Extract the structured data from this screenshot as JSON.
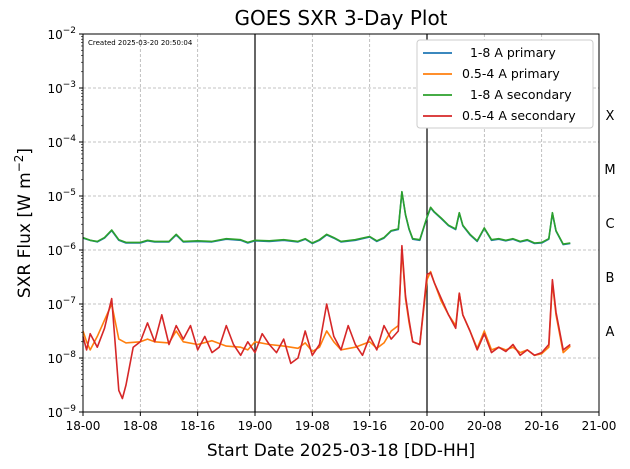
{
  "chart_data": {
    "type": "line",
    "title": "GOES SXR 3-Day Plot",
    "created": "Created 2025-03-20 20:50:04",
    "xlabel": "Start Date 2025-03-18 [DD-HH]",
    "ylabel_main": "SXR Flux [W m",
    "ylabel_exp": "−2",
    "ylabel_close": "]",
    "y_scale": "log",
    "xlim_hours": [
      0,
      72
    ],
    "ylim_exp": [
      -9,
      -2
    ],
    "x_ticks": [
      "18-00",
      "18-08",
      "18-16",
      "19-00",
      "19-08",
      "19-16",
      "20-00",
      "20-08",
      "20-16",
      "21-00"
    ],
    "y_ticks": [
      {
        "exp": -9,
        "label": "10",
        "sup": "−9"
      },
      {
        "exp": -8,
        "label": "10",
        "sup": "−8"
      },
      {
        "exp": -7,
        "label": "10",
        "sup": "−7"
      },
      {
        "exp": -6,
        "label": "10",
        "sup": "−6"
      },
      {
        "exp": -5,
        "label": "10",
        "sup": "−5"
      },
      {
        "exp": -4,
        "label": "10",
        "sup": "−4"
      },
      {
        "exp": -3,
        "label": "10",
        "sup": "−3"
      },
      {
        "exp": -2,
        "label": "10",
        "sup": "−2"
      }
    ],
    "flare_classes": [
      {
        "label": "A",
        "exp": -7.5
      },
      {
        "label": "B",
        "exp": -6.5
      },
      {
        "label": "C",
        "exp": -5.5
      },
      {
        "label": "M",
        "exp": -4.5
      },
      {
        "label": "X",
        "exp": -3.5
      }
    ],
    "day_lines_hours": [
      24,
      48
    ],
    "grid": true,
    "legend_position": "top-right",
    "series": [
      {
        "name": "  1-8 A primary",
        "color": "#1f77b4",
        "points": [
          [
            0,
            -5.78
          ],
          [
            1,
            -5.82
          ],
          [
            2,
            -5.85
          ],
          [
            3,
            -5.78
          ],
          [
            4,
            -5.64
          ],
          [
            5,
            -5.82
          ],
          [
            6,
            -5.87
          ],
          [
            8,
            -5.87
          ],
          [
            9,
            -5.83
          ],
          [
            10,
            -5.85
          ],
          [
            12,
            -5.85
          ],
          [
            13,
            -5.72
          ],
          [
            14,
            -5.85
          ],
          [
            16,
            -5.84
          ],
          [
            18,
            -5.85
          ],
          [
            20,
            -5.8
          ],
          [
            22,
            -5.82
          ],
          [
            23,
            -5.87
          ],
          [
            24,
            -5.83
          ],
          [
            26,
            -5.84
          ],
          [
            28,
            -5.82
          ],
          [
            30,
            -5.85
          ],
          [
            31,
            -5.8
          ],
          [
            32,
            -5.88
          ],
          [
            33,
            -5.82
          ],
          [
            34,
            -5.72
          ],
          [
            35,
            -5.78
          ],
          [
            36,
            -5.85
          ],
          [
            38,
            -5.82
          ],
          [
            40,
            -5.76
          ],
          [
            41,
            -5.84
          ],
          [
            42,
            -5.78
          ],
          [
            43,
            -5.65
          ],
          [
            44,
            -5.62
          ],
          [
            44.5,
            -4.93
          ],
          [
            45,
            -5.35
          ],
          [
            45.5,
            -5.62
          ],
          [
            46,
            -5.8
          ],
          [
            47,
            -5.82
          ],
          [
            48,
            -5.4
          ],
          [
            48.5,
            -5.22
          ],
          [
            49,
            -5.3
          ],
          [
            50,
            -5.42
          ],
          [
            51,
            -5.55
          ],
          [
            52,
            -5.62
          ],
          [
            52.5,
            -5.32
          ],
          [
            53,
            -5.55
          ],
          [
            54,
            -5.72
          ],
          [
            55,
            -5.84
          ],
          [
            56,
            -5.6
          ],
          [
            57,
            -5.82
          ],
          [
            58,
            -5.8
          ],
          [
            59,
            -5.83
          ],
          [
            60,
            -5.8
          ],
          [
            61,
            -5.85
          ],
          [
            62,
            -5.82
          ],
          [
            63,
            -5.88
          ],
          [
            64,
            -5.87
          ],
          [
            65,
            -5.8
          ],
          [
            65.5,
            -5.32
          ],
          [
            66,
            -5.65
          ],
          [
            67,
            -5.9
          ],
          [
            68,
            -5.88
          ]
        ]
      },
      {
        "name": "0.5-4 A primary",
        "color": "#ff7f0e",
        "points": [
          [
            0,
            -7.5
          ],
          [
            0.5,
            -7.7
          ],
          [
            1,
            -7.85
          ],
          [
            2,
            -7.6
          ],
          [
            3,
            -7.3
          ],
          [
            4,
            -7.0
          ],
          [
            5,
            -7.65
          ],
          [
            6,
            -7.72
          ],
          [
            8,
            -7.7
          ],
          [
            9,
            -7.65
          ],
          [
            10,
            -7.7
          ],
          [
            12,
            -7.72
          ],
          [
            13,
            -7.5
          ],
          [
            14,
            -7.7
          ],
          [
            16,
            -7.75
          ],
          [
            18,
            -7.68
          ],
          [
            20,
            -7.78
          ],
          [
            22,
            -7.8
          ],
          [
            23,
            -7.85
          ],
          [
            24,
            -7.7
          ],
          [
            26,
            -7.75
          ],
          [
            28,
            -7.78
          ],
          [
            30,
            -7.82
          ],
          [
            31,
            -7.72
          ],
          [
            32,
            -7.88
          ],
          [
            33,
            -7.8
          ],
          [
            34,
            -7.5
          ],
          [
            35,
            -7.7
          ],
          [
            36,
            -7.85
          ],
          [
            38,
            -7.8
          ],
          [
            40,
            -7.7
          ],
          [
            41,
            -7.82
          ],
          [
            42,
            -7.72
          ],
          [
            43,
            -7.5
          ],
          [
            44,
            -7.4
          ],
          [
            44.5,
            -6.0
          ],
          [
            45,
            -6.9
          ],
          [
            45.5,
            -7.35
          ],
          [
            46,
            -7.7
          ],
          [
            47,
            -7.75
          ],
          [
            48,
            -6.55
          ],
          [
            48.5,
            -6.4
          ],
          [
            49,
            -6.6
          ],
          [
            50,
            -6.95
          ],
          [
            51,
            -7.2
          ],
          [
            52,
            -7.4
          ],
          [
            52.5,
            -6.8
          ],
          [
            53,
            -7.2
          ],
          [
            54,
            -7.5
          ],
          [
            55,
            -7.82
          ],
          [
            56,
            -7.5
          ],
          [
            57,
            -7.85
          ],
          [
            58,
            -7.8
          ],
          [
            59,
            -7.85
          ],
          [
            60,
            -7.8
          ],
          [
            61,
            -7.9
          ],
          [
            62,
            -7.85
          ],
          [
            63,
            -7.95
          ],
          [
            64,
            -7.92
          ],
          [
            65,
            -7.8
          ],
          [
            65.5,
            -6.6
          ],
          [
            66,
            -7.2
          ],
          [
            67,
            -7.9
          ],
          [
            68,
            -7.78
          ]
        ]
      },
      {
        "name": "  1-8 A secondary",
        "color": "#2ca02c",
        "points": [
          [
            0,
            -5.77
          ],
          [
            1,
            -5.82
          ],
          [
            2,
            -5.84
          ],
          [
            3,
            -5.77
          ],
          [
            4,
            -5.63
          ],
          [
            5,
            -5.81
          ],
          [
            6,
            -5.86
          ],
          [
            8,
            -5.86
          ],
          [
            9,
            -5.82
          ],
          [
            10,
            -5.84
          ],
          [
            12,
            -5.84
          ],
          [
            13,
            -5.71
          ],
          [
            14,
            -5.84
          ],
          [
            16,
            -5.83
          ],
          [
            18,
            -5.84
          ],
          [
            20,
            -5.79
          ],
          [
            22,
            -5.81
          ],
          [
            23,
            -5.86
          ],
          [
            24,
            -5.82
          ],
          [
            26,
            -5.83
          ],
          [
            28,
            -5.81
          ],
          [
            30,
            -5.84
          ],
          [
            31,
            -5.79
          ],
          [
            32,
            -5.87
          ],
          [
            33,
            -5.81
          ],
          [
            34,
            -5.71
          ],
          [
            35,
            -5.77
          ],
          [
            36,
            -5.84
          ],
          [
            38,
            -5.81
          ],
          [
            40,
            -5.75
          ],
          [
            41,
            -5.83
          ],
          [
            42,
            -5.77
          ],
          [
            43,
            -5.64
          ],
          [
            44,
            -5.61
          ],
          [
            44.5,
            -4.92
          ],
          [
            45,
            -5.34
          ],
          [
            45.5,
            -5.61
          ],
          [
            46,
            -5.79
          ],
          [
            47,
            -5.81
          ],
          [
            48,
            -5.39
          ],
          [
            48.5,
            -5.21
          ],
          [
            49,
            -5.29
          ],
          [
            50,
            -5.41
          ],
          [
            51,
            -5.54
          ],
          [
            52,
            -5.61
          ],
          [
            52.5,
            -5.31
          ],
          [
            53,
            -5.54
          ],
          [
            54,
            -5.71
          ],
          [
            55,
            -5.83
          ],
          [
            56,
            -5.59
          ],
          [
            57,
            -5.81
          ],
          [
            58,
            -5.79
          ],
          [
            59,
            -5.82
          ],
          [
            60,
            -5.79
          ],
          [
            61,
            -5.84
          ],
          [
            62,
            -5.81
          ],
          [
            63,
            -5.87
          ],
          [
            64,
            -5.86
          ],
          [
            65,
            -5.79
          ],
          [
            65.5,
            -5.31
          ],
          [
            66,
            -5.64
          ],
          [
            67,
            -5.89
          ],
          [
            68,
            -5.87
          ]
        ]
      },
      {
        "name": "0.5-4 A secondary",
        "color": "#d62728",
        "points": [
          [
            0,
            -7.6
          ],
          [
            0.5,
            -7.85
          ],
          [
            1,
            -7.55
          ],
          [
            2,
            -7.8
          ],
          [
            3,
            -7.45
          ],
          [
            4,
            -6.9
          ],
          [
            5,
            -8.6
          ],
          [
            5.5,
            -8.75
          ],
          [
            6,
            -8.5
          ],
          [
            7,
            -7.8
          ],
          [
            8,
            -7.7
          ],
          [
            9,
            -7.35
          ],
          [
            10,
            -7.7
          ],
          [
            11,
            -7.2
          ],
          [
            12,
            -7.75
          ],
          [
            13,
            -7.4
          ],
          [
            14,
            -7.65
          ],
          [
            15,
            -7.4
          ],
          [
            16,
            -7.85
          ],
          [
            17,
            -7.6
          ],
          [
            18,
            -7.9
          ],
          [
            19,
            -7.8
          ],
          [
            20,
            -7.4
          ],
          [
            21,
            -7.75
          ],
          [
            22,
            -7.95
          ],
          [
            23,
            -7.7
          ],
          [
            24,
            -7.9
          ],
          [
            25,
            -7.55
          ],
          [
            26,
            -7.75
          ],
          [
            27,
            -7.9
          ],
          [
            28,
            -7.65
          ],
          [
            29,
            -8.1
          ],
          [
            30,
            -8.0
          ],
          [
            31,
            -7.5
          ],
          [
            32,
            -7.95
          ],
          [
            33,
            -7.75
          ],
          [
            34,
            -7.0
          ],
          [
            35,
            -7.6
          ],
          [
            36,
            -7.85
          ],
          [
            37,
            -7.4
          ],
          [
            38,
            -7.75
          ],
          [
            39,
            -7.95
          ],
          [
            40,
            -7.6
          ],
          [
            41,
            -7.85
          ],
          [
            42,
            -7.4
          ],
          [
            43,
            -7.65
          ],
          [
            44,
            -7.5
          ],
          [
            44.5,
            -5.92
          ],
          [
            45,
            -6.85
          ],
          [
            45.5,
            -7.3
          ],
          [
            46,
            -7.7
          ],
          [
            47,
            -7.75
          ],
          [
            48,
            -6.45
          ],
          [
            48.5,
            -6.42
          ],
          [
            49,
            -6.6
          ],
          [
            50,
            -6.9
          ],
          [
            51,
            -7.2
          ],
          [
            52,
            -7.45
          ],
          [
            52.5,
            -6.8
          ],
          [
            53,
            -7.2
          ],
          [
            54,
            -7.5
          ],
          [
            55,
            -7.85
          ],
          [
            56,
            -7.55
          ],
          [
            57,
            -7.9
          ],
          [
            58,
            -7.8
          ],
          [
            59,
            -7.88
          ],
          [
            60,
            -7.75
          ],
          [
            61,
            -7.95
          ],
          [
            62,
            -7.85
          ],
          [
            63,
            -7.95
          ],
          [
            64,
            -7.9
          ],
          [
            65,
            -7.75
          ],
          [
            65.5,
            -6.55
          ],
          [
            66,
            -7.15
          ],
          [
            67,
            -7.85
          ],
          [
            68,
            -7.75
          ]
        ]
      }
    ]
  }
}
